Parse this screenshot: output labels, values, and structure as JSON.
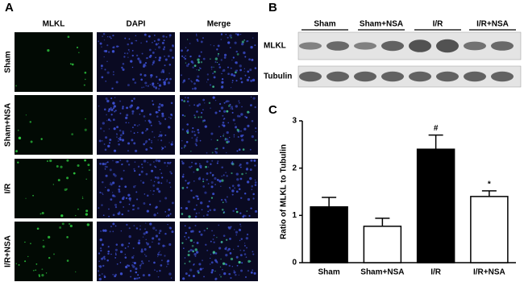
{
  "panel_labels": [
    "A",
    "B",
    "C"
  ],
  "panel_a": {
    "columns": [
      "MLKL",
      "DAPI",
      "Merge"
    ],
    "rows": [
      "Sham",
      "Sham+NSA",
      "I/R",
      "I/R+NSA"
    ]
  },
  "panel_b": {
    "groups": [
      "Sham",
      "Sham+NSA",
      "I/R",
      "I/R+NSA"
    ],
    "blots": [
      "MLKL",
      "Tubulin"
    ]
  },
  "chart_data": {
    "type": "bar",
    "y_label": "Ratio of MLKL to Tubulin",
    "categories": [
      "Sham",
      "Sham+NSA",
      "I/R",
      "I/R+NSA"
    ],
    "values": [
      1.18,
      0.77,
      2.4,
      1.4
    ],
    "errors": [
      0.2,
      0.17,
      0.3,
      0.12
    ],
    "colors": [
      "#000000",
      "#ffffff",
      "#000000",
      "#ffffff"
    ],
    "value_annotations": [
      null,
      null,
      "#",
      "*"
    ],
    "ylim": [
      0,
      3
    ],
    "yticks": [
      0,
      1,
      2,
      3
    ]
  }
}
